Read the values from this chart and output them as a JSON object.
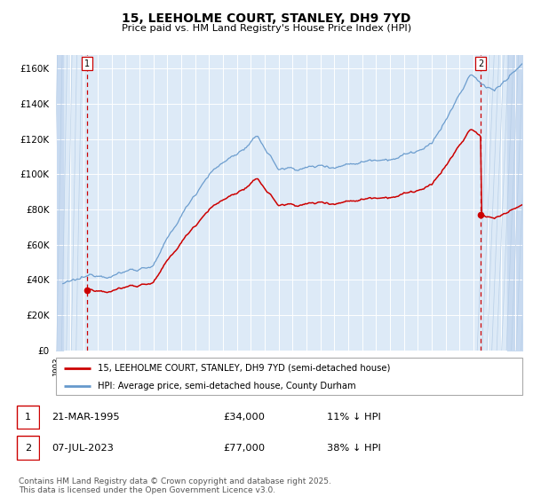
{
  "title": "15, LEEHOLME COURT, STANLEY, DH9 7YD",
  "subtitle": "Price paid vs. HM Land Registry's House Price Index (HPI)",
  "property_label": "15, LEEHOLME COURT, STANLEY, DH9 7YD (semi-detached house)",
  "hpi_label": "HPI: Average price, semi-detached house, County Durham",
  "transaction1_date": "21-MAR-1995",
  "transaction1_price": "£34,000",
  "transaction1_hpi": "11% ↓ HPI",
  "transaction1_year": 1995.22,
  "transaction1_value": 34000,
  "transaction2_date": "07-JUL-2023",
  "transaction2_price": "£77,000",
  "transaction2_hpi": "38% ↓ HPI",
  "transaction2_year": 2023.51,
  "transaction2_value": 77000,
  "ylim_min": 0,
  "ylim_max": 168000,
  "xlim_min": 1993.0,
  "xlim_max": 2026.5,
  "bg_color": "#ddeaf7",
  "hatch_color": "#c8daf0",
  "line_color_red": "#cc0000",
  "line_color_blue": "#6699cc",
  "vline_color": "#cc0000",
  "grid_color": "#ffffff",
  "copyright_text": "Contains HM Land Registry data © Crown copyright and database right 2025.\nThis data is licensed under the Open Government Licence v3.0.",
  "footnote_fontsize": 6.5
}
